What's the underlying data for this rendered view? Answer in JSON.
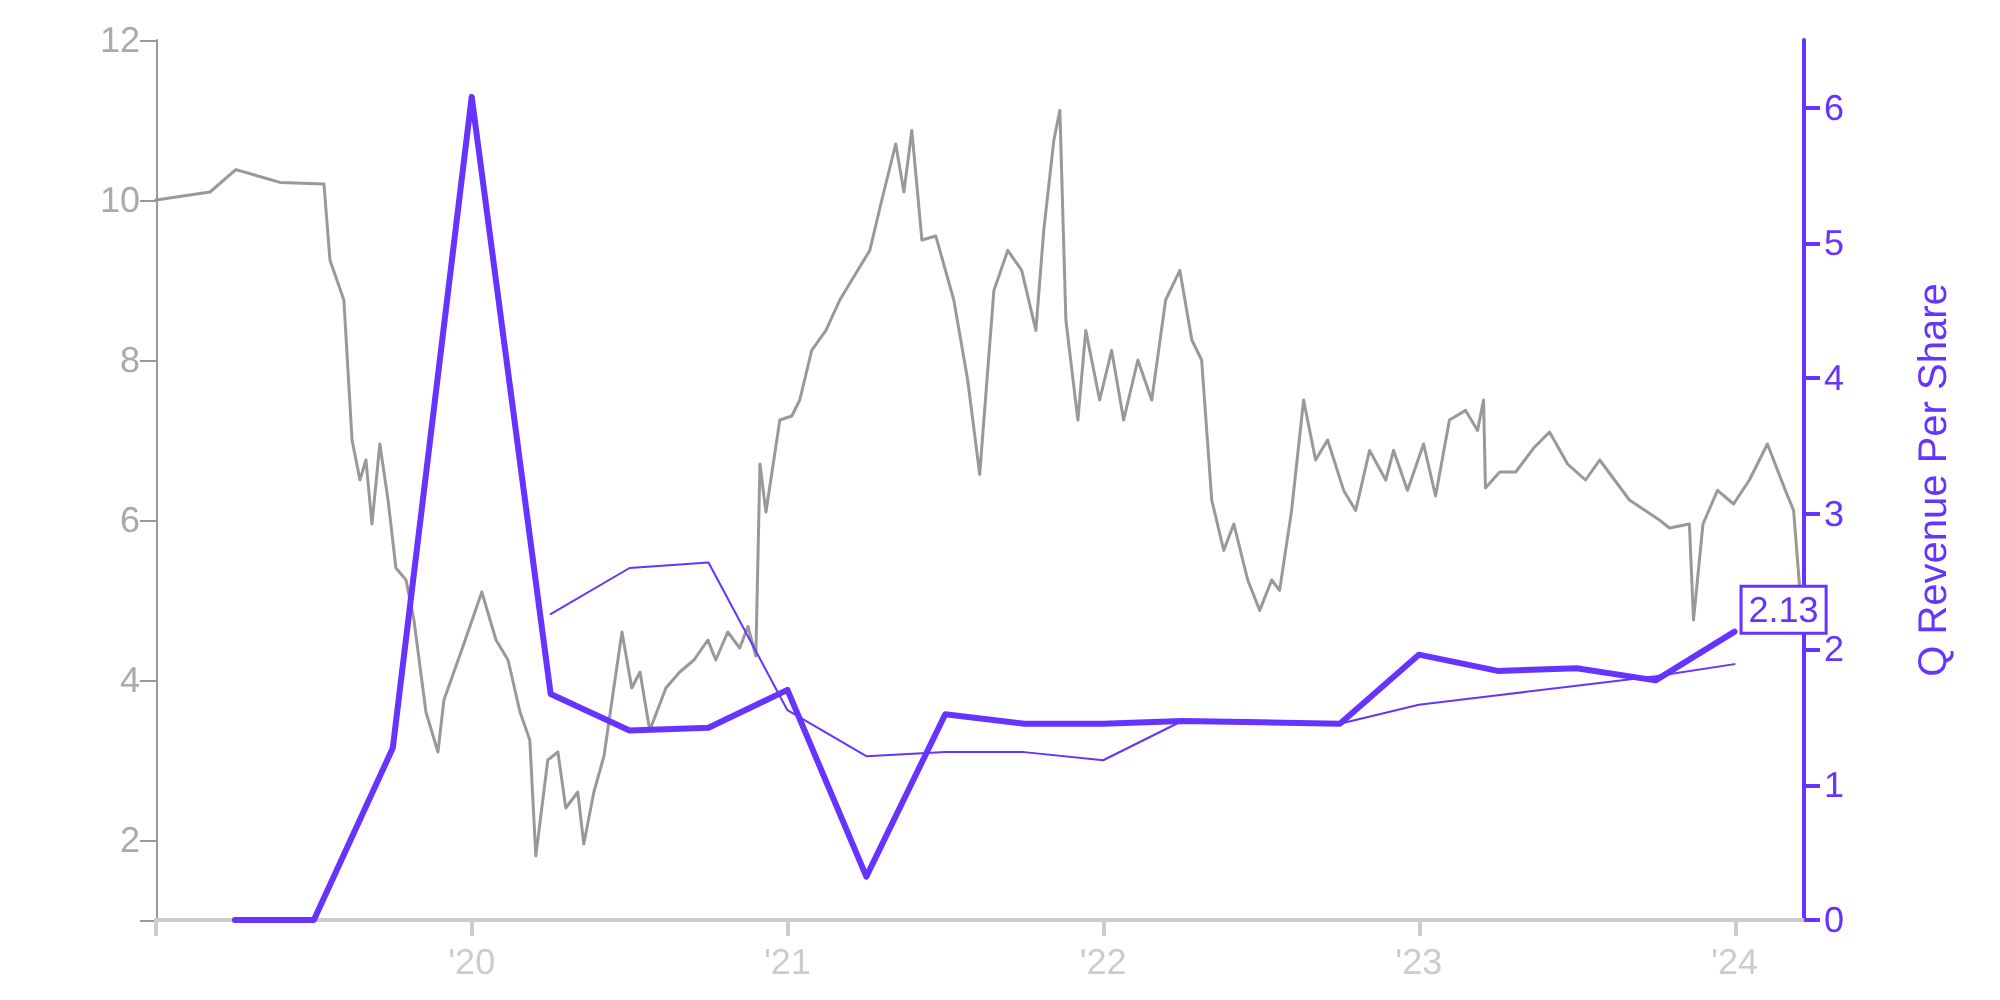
{
  "chart_data": {
    "type": "line",
    "y2label": "Q Revenue Per Share",
    "xlim": [
      2019,
      2024.22
    ],
    "xticks": [
      {
        "value": 2019,
        "label": null
      },
      {
        "value": 2020,
        "label": "'20"
      },
      {
        "value": 2021,
        "label": "'21"
      },
      {
        "value": 2022,
        "label": "'22"
      },
      {
        "value": 2023,
        "label": "'23"
      },
      {
        "value": 2024,
        "label": "'24"
      }
    ],
    "ylim": [
      1,
      12
    ],
    "yticks": [
      {
        "value": 1,
        "label": null
      },
      2,
      4,
      6,
      8,
      10,
      12
    ],
    "y2lim": [
      0,
      6.5
    ],
    "y2ticks": [
      0,
      1,
      2,
      3,
      4,
      5,
      6
    ],
    "grid": false,
    "legend": false,
    "marker": "none",
    "line_style": "solid",
    "series": [
      {
        "color": "#999999",
        "x": [
          2019.0,
          2019.171,
          2019.253,
          2019.393,
          2019.532,
          2019.551,
          2019.595,
          2019.621,
          2019.646,
          2019.665,
          2019.684,
          2019.709,
          2019.735,
          2019.76,
          2019.792,
          2019.817,
          2019.855,
          2019.893,
          2019.912,
          2019.975,
          2020.032,
          2020.077,
          2020.115,
          2020.153,
          2020.184,
          2020.203,
          2020.241,
          2020.273,
          2020.298,
          2020.336,
          2020.355,
          2020.387,
          2020.419,
          2020.45,
          2020.476,
          2020.507,
          2020.533,
          2020.564,
          2020.615,
          2020.659,
          2020.704,
          2020.748,
          2020.773,
          2020.811,
          2020.849,
          2020.875,
          2020.9,
          2020.913,
          2020.932,
          2020.976,
          2021.014,
          2021.039,
          2021.077,
          2021.122,
          2021.166,
          2021.204,
          2021.261,
          2021.299,
          2021.343,
          2021.369,
          2021.394,
          2021.426,
          2021.47,
          2021.527,
          2021.571,
          2021.609,
          2021.654,
          2021.698,
          2021.742,
          2021.787,
          2021.812,
          2021.844,
          2021.863,
          2021.882,
          2021.92,
          2021.945,
          2021.989,
          2022.027,
          2022.065,
          2022.11,
          2022.154,
          2022.198,
          2022.243,
          2022.281,
          2022.312,
          2022.344,
          2022.382,
          2022.414,
          2022.458,
          2022.496,
          2022.534,
          2022.559,
          2022.597,
          2022.635,
          2022.673,
          2022.711,
          2022.762,
          2022.8,
          2022.844,
          2022.895,
          2022.92,
          2022.964,
          2023.015,
          2023.053,
          2023.097,
          2023.148,
          2023.186,
          2023.205,
          2023.211,
          2023.256,
          2023.307,
          2023.364,
          2023.414,
          2023.471,
          2023.528,
          2023.573,
          2023.667,
          2023.762,
          2023.794,
          2023.857,
          2023.87,
          2023.9,
          2023.946,
          2023.997,
          2024.047,
          2024.104,
          2024.161,
          2024.187,
          2024.206
        ],
        "values": [
          10.0,
          10.1,
          10.38,
          10.22,
          10.2,
          9.25,
          8.75,
          7.0,
          6.5,
          6.75,
          5.95,
          6.95,
          6.25,
          5.4,
          5.25,
          4.75,
          3.6,
          3.1,
          3.75,
          4.45,
          5.1,
          4.5,
          4.25,
          3.6,
          3.25,
          1.8,
          3.0,
          3.1,
          2.4,
          2.6,
          1.95,
          2.6,
          3.05,
          3.9,
          4.6,
          3.9,
          4.1,
          3.37,
          3.9,
          4.1,
          4.25,
          4.5,
          4.25,
          4.6,
          4.4,
          4.67,
          4.3,
          6.7,
          6.1,
          7.25,
          7.3,
          7.5,
          8.12,
          8.37,
          8.75,
          9.0,
          9.37,
          10.0,
          10.7,
          10.1,
          10.87,
          9.5,
          9.55,
          8.75,
          7.75,
          6.57,
          8.87,
          9.37,
          9.12,
          8.37,
          9.62,
          10.75,
          11.12,
          8.5,
          7.25,
          8.37,
          7.5,
          8.12,
          7.25,
          8.0,
          7.5,
          8.75,
          9.12,
          8.25,
          8.0,
          6.25,
          5.62,
          5.95,
          5.25,
          4.87,
          5.25,
          5.12,
          6.12,
          7.5,
          6.75,
          7.0,
          6.37,
          6.12,
          6.87,
          6.5,
          6.87,
          6.37,
          6.95,
          6.3,
          7.25,
          7.37,
          7.12,
          7.5,
          6.4,
          6.6,
          6.6,
          6.9,
          7.1,
          6.7,
          6.5,
          6.75,
          6.25,
          6.0,
          5.9,
          5.95,
          4.75,
          5.95,
          6.37,
          6.2,
          6.5,
          6.95,
          6.37,
          6.12,
          5.17
        ]
      },
      {
        "color": "#6633ff",
        "axis": "y2",
        "x": [
          2019.25,
          2019.5,
          2019.75,
          2020.0,
          2020.25,
          2020.5,
          2020.75,
          2021.0,
          2021.25,
          2021.5,
          2021.75,
          2022.0,
          2022.25,
          2022.5,
          2022.75,
          2023.0,
          2023.25,
          2023.5,
          2023.75,
          2024.0
        ],
        "values": [
          0,
          0,
          1.27,
          6.08,
          1.67,
          1.4,
          1.42,
          1.7,
          0.32,
          1.52,
          1.45,
          1.45,
          1.47,
          1.46,
          1.45,
          1.96,
          1.84,
          1.86,
          1.77,
          2.13
        ],
        "value_labels": [
          null,
          null,
          null,
          null,
          null,
          null,
          null,
          null,
          null,
          null,
          null,
          null,
          null,
          null,
          null,
          null,
          null,
          null,
          null,
          "2.13"
        ]
      },
      {
        "color": "#6633ff",
        "axis": "y2",
        "x": [
          2020.25,
          2020.5,
          2020.75,
          2021.0,
          2021.25,
          2021.5,
          2021.75,
          2022.0,
          2022.25,
          2022.5,
          2022.75,
          2023.0,
          2023.25,
          2023.5,
          2023.75,
          2024.0
        ],
        "values": [
          2.26,
          2.6,
          2.64,
          1.55,
          1.21,
          1.24,
          1.24,
          1.18,
          1.47,
          1.46,
          1.45,
          1.59,
          1.66,
          1.73,
          1.8,
          1.89
        ]
      }
    ]
  }
}
